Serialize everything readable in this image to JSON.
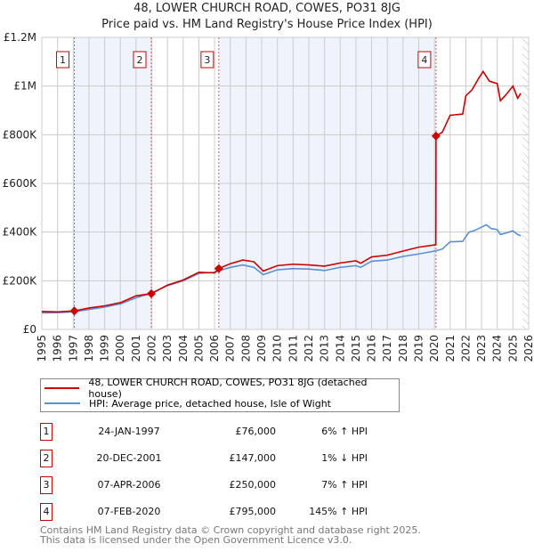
{
  "header": {
    "line1": "48, LOWER CHURCH ROAD, COWES, PO31 8JG",
    "line2": "Price paid vs. HM Land Registry's House Price Index (HPI)"
  },
  "chart_data": {
    "type": "line",
    "title": "48, LOWER CHURCH ROAD, COWES, PO31 8JG — Price paid vs. HM Land Registry's House Price Index (HPI)",
    "xlim": [
      1995,
      2026
    ],
    "ylim": [
      0,
      1200000
    ],
    "x_ticks": [
      "1995",
      "1996",
      "1997",
      "1998",
      "1999",
      "2000",
      "2001",
      "2002",
      "2003",
      "2004",
      "2005",
      "2006",
      "2007",
      "2008",
      "2009",
      "2010",
      "2011",
      "2012",
      "2013",
      "2014",
      "2015",
      "2016",
      "2017",
      "2018",
      "2019",
      "2020",
      "2021",
      "2022",
      "2023",
      "2024",
      "2025",
      "2026"
    ],
    "y_ticks": [
      {
        "v": 0,
        "label": "£0"
      },
      {
        "v": 200000,
        "label": "£200K"
      },
      {
        "v": 400000,
        "label": "£400K"
      },
      {
        "v": 600000,
        "label": "£600K"
      },
      {
        "v": 800000,
        "label": "£800K"
      },
      {
        "v": 1000000,
        "label": "£1M"
      },
      {
        "v": 1200000,
        "label": "£1.2M"
      }
    ],
    "series": [
      {
        "name": "48, LOWER CHURCH ROAD, COWES, PO31 8JG (detached house)",
        "color": "#cc0000",
        "points": [
          [
            1995,
            74
          ],
          [
            1996,
            72
          ],
          [
            1997.07,
            76
          ],
          [
            1998,
            88
          ],
          [
            1999,
            97
          ],
          [
            2000,
            110
          ],
          [
            2001,
            138
          ],
          [
            2001.97,
            147
          ],
          [
            2003,
            182
          ],
          [
            2004,
            203
          ],
          [
            2005,
            235
          ],
          [
            2006,
            232
          ],
          [
            2006.27,
            250
          ],
          [
            2007,
            270
          ],
          [
            2007.8,
            285
          ],
          [
            2008.5,
            278
          ],
          [
            2009.1,
            240
          ],
          [
            2010,
            262
          ],
          [
            2011,
            268
          ],
          [
            2012,
            265
          ],
          [
            2013,
            260
          ],
          [
            2014,
            273
          ],
          [
            2015,
            282
          ],
          [
            2015.3,
            272
          ],
          [
            2016,
            298
          ],
          [
            2017,
            305
          ],
          [
            2018,
            322
          ],
          [
            2019,
            338
          ],
          [
            2020.09,
            348
          ],
          [
            2020.1,
            795
          ],
          [
            2020.5,
            810
          ],
          [
            2021,
            880
          ],
          [
            2021.8,
            885
          ],
          [
            2022,
            960
          ],
          [
            2022.4,
            985
          ],
          [
            2022.8,
            1030
          ],
          [
            2023.1,
            1060
          ],
          [
            2023.5,
            1020
          ],
          [
            2024,
            1010
          ],
          [
            2024.2,
            940
          ],
          [
            2024.5,
            960
          ],
          [
            2025,
            1000
          ],
          [
            2025.3,
            950
          ],
          [
            2025.5,
            970
          ]
        ]
      },
      {
        "name": "HPI: Average price, detached house, Isle of Wight",
        "color": "#5b8fd6",
        "points": [
          [
            1995,
            68
          ],
          [
            1996,
            69
          ],
          [
            1997,
            72
          ],
          [
            1998,
            82
          ],
          [
            1999,
            92
          ],
          [
            2000,
            105
          ],
          [
            2001,
            130
          ],
          [
            2002,
            150
          ],
          [
            2003,
            180
          ],
          [
            2004,
            200
          ],
          [
            2005,
            230
          ],
          [
            2006,
            235
          ],
          [
            2007,
            255
          ],
          [
            2007.8,
            265
          ],
          [
            2008.5,
            255
          ],
          [
            2009.1,
            225
          ],
          [
            2010,
            245
          ],
          [
            2011,
            250
          ],
          [
            2012,
            248
          ],
          [
            2013,
            242
          ],
          [
            2014,
            255
          ],
          [
            2015,
            262
          ],
          [
            2015.3,
            255
          ],
          [
            2016,
            280
          ],
          [
            2017,
            285
          ],
          [
            2018,
            300
          ],
          [
            2019,
            310
          ],
          [
            2020,
            322
          ],
          [
            2020.5,
            330
          ],
          [
            2021,
            360
          ],
          [
            2021.8,
            362
          ],
          [
            2022.2,
            400
          ],
          [
            2022.5,
            405
          ],
          [
            2023,
            420
          ],
          [
            2023.3,
            430
          ],
          [
            2023.6,
            415
          ],
          [
            2024,
            410
          ],
          [
            2024.2,
            390
          ],
          [
            2024.5,
            395
          ],
          [
            2025,
            405
          ],
          [
            2025.3,
            390
          ],
          [
            2025.5,
            385
          ]
        ]
      }
    ],
    "y_unit_multiplier": 1000,
    "sales": [
      {
        "n": "1",
        "x": 1997.07,
        "v": 76000
      },
      {
        "n": "2",
        "x": 2001.97,
        "v": 147000
      },
      {
        "n": "3",
        "x": 2006.27,
        "v": 250000
      },
      {
        "n": "4",
        "x": 2020.1,
        "v": 795000
      }
    ],
    "shaded_ranges": [
      [
        1997.07,
        2001.97
      ],
      [
        2006.27,
        2020.1
      ]
    ],
    "hatched_from": 2025.6,
    "grid": true,
    "legend_placement": "below"
  },
  "legend": [
    {
      "label": "48, LOWER CHURCH ROAD, COWES, PO31 8JG (detached house)",
      "color": "#cc0000"
    },
    {
      "label": "HPI: Average price, detached house, Isle of Wight",
      "color": "#5b8fd6"
    }
  ],
  "table": [
    {
      "n": "1",
      "date": "24-JAN-1997",
      "price": "£76,000",
      "hpi": "6% ↑ HPI"
    },
    {
      "n": "2",
      "date": "20-DEC-2001",
      "price": "£147,000",
      "hpi": "1% ↓ HPI"
    },
    {
      "n": "3",
      "date": "07-APR-2006",
      "price": "£250,000",
      "hpi": "7% ↑ HPI"
    },
    {
      "n": "4",
      "date": "07-FEB-2020",
      "price": "£795,000",
      "hpi": "145% ↑ HPI"
    }
  ],
  "footer": {
    "line1": "Contains HM Land Registry data © Crown copyright and database right 2025.",
    "line2": "This data is licensed under the Open Government Licence v3.0."
  }
}
